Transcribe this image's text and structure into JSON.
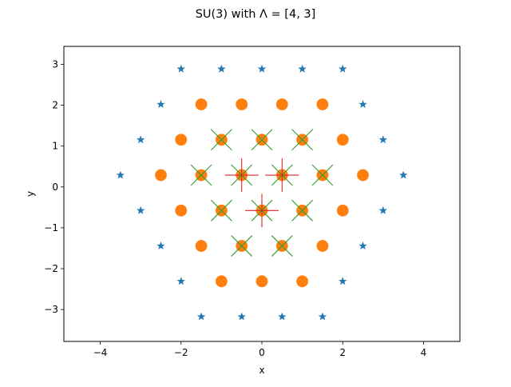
{
  "chart_data": {
    "type": "scatter",
    "title": "SU(3) with Λ = [4, 3]",
    "xlabel": "x",
    "ylabel": "y",
    "xlim": [
      -4.9,
      4.9
    ],
    "ylim": [
      -3.78,
      3.44
    ],
    "xticks": [
      -4,
      -2,
      0,
      2,
      4
    ],
    "yticks": [
      -3,
      -2,
      -1,
      0,
      1,
      2,
      3
    ],
    "tick_labels": {
      "x": [
        "−4",
        "−2",
        "0",
        "2",
        "4"
      ],
      "y": [
        "−3",
        "−2",
        "−1",
        "0",
        "1",
        "2",
        "3"
      ]
    },
    "grid": false,
    "legend": "none",
    "series": [
      {
        "marker": "star",
        "color": "#1f77b4",
        "points": [
          [
            -2.0,
            2.887
          ],
          [
            -1.0,
            2.887
          ],
          [
            0.0,
            2.887
          ],
          [
            1.0,
            2.887
          ],
          [
            2.0,
            2.887
          ],
          [
            -2.5,
            2.021
          ],
          [
            2.5,
            2.021
          ],
          [
            -3.0,
            1.155
          ],
          [
            3.0,
            1.155
          ],
          [
            -3.5,
            0.289
          ],
          [
            3.5,
            0.289
          ],
          [
            -3.0,
            -0.577
          ],
          [
            3.0,
            -0.577
          ],
          [
            -2.5,
            -1.443
          ],
          [
            2.5,
            -1.443
          ],
          [
            -2.0,
            -2.309
          ],
          [
            2.0,
            -2.309
          ],
          [
            -1.5,
            -3.175
          ],
          [
            -0.5,
            -3.175
          ],
          [
            0.5,
            -3.175
          ],
          [
            1.5,
            -3.175
          ]
        ]
      },
      {
        "marker": "circle",
        "color": "#ff7f0e",
        "points": [
          [
            -1.5,
            2.021
          ],
          [
            -0.5,
            2.021
          ],
          [
            0.5,
            2.021
          ],
          [
            1.5,
            2.021
          ],
          [
            -2.0,
            1.155
          ],
          [
            -1.0,
            1.155
          ],
          [
            0.0,
            1.155
          ],
          [
            1.0,
            1.155
          ],
          [
            2.0,
            1.155
          ],
          [
            -2.5,
            0.289
          ],
          [
            -1.5,
            0.289
          ],
          [
            -0.5,
            0.289
          ],
          [
            0.5,
            0.289
          ],
          [
            1.5,
            0.289
          ],
          [
            2.5,
            0.289
          ],
          [
            -2.0,
            -0.577
          ],
          [
            -1.0,
            -0.577
          ],
          [
            0.0,
            -0.577
          ],
          [
            1.0,
            -0.577
          ],
          [
            2.0,
            -0.577
          ],
          [
            -1.5,
            -1.443
          ],
          [
            -0.5,
            -1.443
          ],
          [
            0.5,
            -1.443
          ],
          [
            1.5,
            -1.443
          ],
          [
            -1.0,
            -2.309
          ],
          [
            0.0,
            -2.309
          ],
          [
            1.0,
            -2.309
          ]
        ]
      },
      {
        "marker": "x",
        "color": "#2ca02c",
        "points": [
          [
            -1.0,
            1.155
          ],
          [
            0.0,
            1.155
          ],
          [
            1.0,
            1.155
          ],
          [
            -1.5,
            0.289
          ],
          [
            -0.5,
            0.289
          ],
          [
            0.5,
            0.289
          ],
          [
            1.5,
            0.289
          ],
          [
            -1.0,
            -0.577
          ],
          [
            0.0,
            -0.577
          ],
          [
            1.0,
            -0.577
          ],
          [
            -0.5,
            -1.443
          ],
          [
            0.5,
            -1.443
          ]
        ]
      },
      {
        "marker": "plus",
        "color": "#d62728",
        "points": [
          [
            -0.5,
            0.289
          ],
          [
            0.5,
            0.289
          ],
          [
            0.0,
            -0.577
          ]
        ]
      }
    ]
  }
}
